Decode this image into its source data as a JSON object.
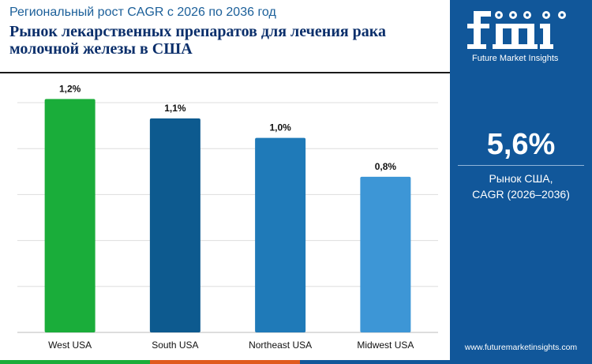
{
  "header": {
    "subtitle": "Региональный рост CAGR с 2026 по 2036 год",
    "title_line1": "Рынок лекарственных препаратов для лечения рака",
    "title_line2": "молочной железы в США"
  },
  "side_panel": {
    "logo_caption": "Future Market Insights",
    "headline_value": "5,6%",
    "headline_label_line1": "Рынок США,",
    "headline_label_line2": "CAGR (2026–2036)",
    "website": "www.futuremarketinsights.com"
  },
  "colors": {
    "panel": "#11579a",
    "bars": [
      "#1aad3a",
      "#0d5a8f",
      "#1f7ab8",
      "#3d96d6"
    ],
    "strip": [
      "#1aad3a",
      "#e05a1e",
      "#11579a"
    ]
  },
  "chart_data": {
    "type": "bar",
    "categories": [
      "West USA",
      "South USA",
      "Northeast USA",
      "Midwest USA"
    ],
    "values": [
      1.2,
      1.1,
      1.0,
      0.8
    ],
    "value_labels": [
      "1,2%",
      "1,1%",
      "1,0%",
      "0,8%"
    ],
    "ylim": [
      0,
      1.25
    ],
    "grid": true,
    "y_ticks_visible": false,
    "legend": "none"
  }
}
